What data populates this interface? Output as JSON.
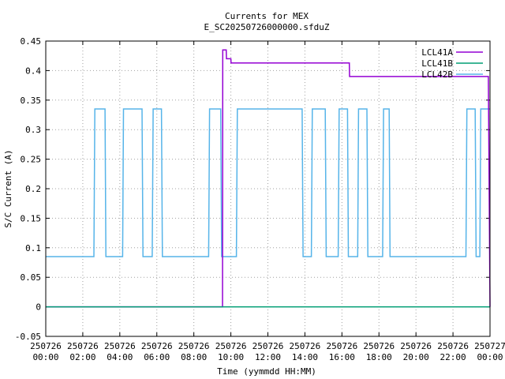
{
  "chart_data": {
    "type": "line",
    "title": "Currents for MEX",
    "subtitle": "E_SC20250726000000.sfduZ",
    "xlabel": "Time (yymmdd HH:MM)",
    "ylabel": "S/C Current (A)",
    "xlim_hours": [
      0,
      24
    ],
    "ylim": [
      -0.05,
      0.45
    ],
    "grid": true,
    "legend_position": "top-right",
    "x_ticks": [
      {
        "hour": 0,
        "date": "250726",
        "time": "00:00"
      },
      {
        "hour": 2,
        "date": "250726",
        "time": "02:00"
      },
      {
        "hour": 4,
        "date": "250726",
        "time": "04:00"
      },
      {
        "hour": 6,
        "date": "250726",
        "time": "06:00"
      },
      {
        "hour": 8,
        "date": "250726",
        "time": "08:00"
      },
      {
        "hour": 10,
        "date": "250726",
        "time": "10:00"
      },
      {
        "hour": 12,
        "date": "250726",
        "time": "12:00"
      },
      {
        "hour": 14,
        "date": "250726",
        "time": "14:00"
      },
      {
        "hour": 16,
        "date": "250726",
        "time": "16:00"
      },
      {
        "hour": 18,
        "date": "250726",
        "time": "18:00"
      },
      {
        "hour": 20,
        "date": "250726",
        "time": "20:00"
      },
      {
        "hour": 22,
        "date": "250726",
        "time": "22:00"
      },
      {
        "hour": 24,
        "date": "250727",
        "time": "00:00"
      }
    ],
    "y_ticks": [
      {
        "value": -0.05,
        "label": "-0.05"
      },
      {
        "value": 0,
        "label": "0"
      },
      {
        "value": 0.05,
        "label": "0.05"
      },
      {
        "value": 0.1,
        "label": "0.1"
      },
      {
        "value": 0.15,
        "label": "0.15"
      },
      {
        "value": 0.2,
        "label": "0.2"
      },
      {
        "value": 0.25,
        "label": "0.25"
      },
      {
        "value": 0.3,
        "label": "0.3"
      },
      {
        "value": 0.35,
        "label": "0.35"
      },
      {
        "value": 0.4,
        "label": "0.4"
      },
      {
        "value": 0.45,
        "label": "0.45"
      }
    ],
    "series": [
      {
        "name": "LCL41A",
        "color": "#9400d3",
        "x_hours": [
          0,
          9.55,
          9.56,
          9.75,
          9.76,
          10.0,
          10.01,
          16.4,
          16.41,
          23.9,
          23.91,
          24.0
        ],
        "values": [
          0,
          0,
          0.435,
          0.435,
          0.42,
          0.42,
          0.413,
          0.413,
          0.39,
          0.39,
          0.39,
          0.0
        ]
      },
      {
        "name": "LCL41B",
        "color": "#009e73",
        "x_hours": [
          0,
          24
        ],
        "values": [
          0,
          0
        ]
      },
      {
        "name": "LCL42B",
        "color": "#56b4e9",
        "x_hours": [
          0,
          2.6,
          2.65,
          3.2,
          3.25,
          4.15,
          4.2,
          5.2,
          5.25,
          5.75,
          5.8,
          6.25,
          6.3,
          8.8,
          8.85,
          9.45,
          9.5,
          10.3,
          10.35,
          13.85,
          13.9,
          14.35,
          14.4,
          15.1,
          15.15,
          15.8,
          15.85,
          16.3,
          16.35,
          16.85,
          16.9,
          17.35,
          17.4,
          18.2,
          18.25,
          18.55,
          18.6,
          22.7,
          22.75,
          23.2,
          23.25,
          23.45,
          23.5,
          24.0
        ],
        "values": [
          0.085,
          0.085,
          0.335,
          0.335,
          0.085,
          0.085,
          0.335,
          0.335,
          0.085,
          0.085,
          0.335,
          0.335,
          0.085,
          0.085,
          0.335,
          0.335,
          0.085,
          0.085,
          0.335,
          0.335,
          0.085,
          0.085,
          0.335,
          0.335,
          0.085,
          0.085,
          0.335,
          0.335,
          0.085,
          0.085,
          0.335,
          0.335,
          0.085,
          0.085,
          0.335,
          0.335,
          0.085,
          0.085,
          0.335,
          0.335,
          0.085,
          0.085,
          0.335,
          0.335
        ]
      }
    ]
  }
}
